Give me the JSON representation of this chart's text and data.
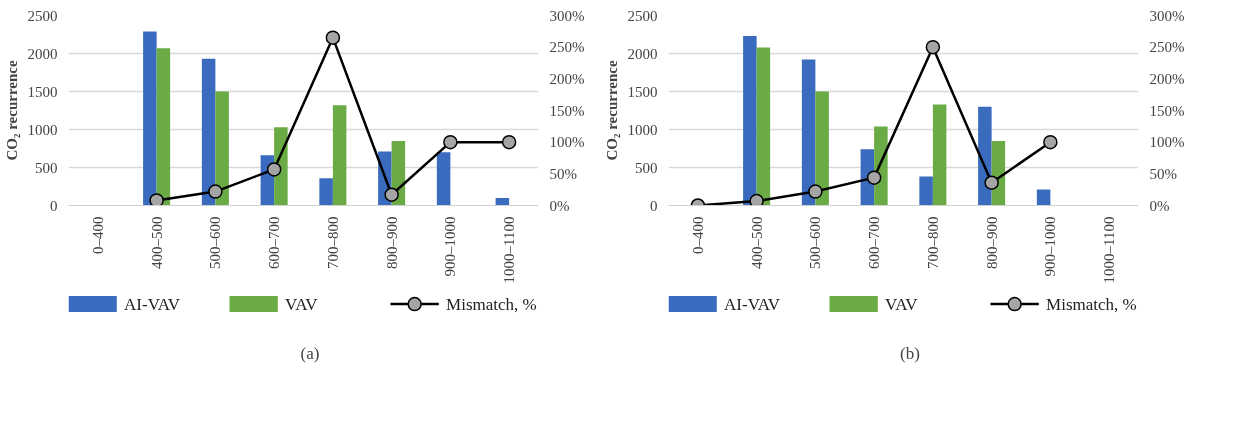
{
  "chart_data": [
    {
      "type": "bar",
      "ylabel": "CO₂ recurrence",
      "categories": [
        "0–400",
        "400–500",
        "500–600",
        "600–700",
        "700–800",
        "800–900",
        "900–1000",
        "1000–1100"
      ],
      "series": [
        {
          "name": "AI-VAV",
          "color": "#3a6bbf",
          "values": [
            0,
            2290,
            1930,
            660,
            360,
            710,
            700,
            100
          ]
        },
        {
          "name": "VAV",
          "color": "#6aab45",
          "values": [
            0,
            2070,
            1500,
            1030,
            1320,
            850,
            0,
            0
          ]
        },
        {
          "name": "Mismatch, %",
          "type": "line",
          "axis": "y2",
          "color": "#000000",
          "marker": "circle",
          "values": [
            null,
            8,
            22,
            57,
            265,
            17,
            100,
            100
          ]
        }
      ],
      "ylim": [
        0,
        2500
      ],
      "yticks": [
        0,
        500,
        1000,
        1500,
        2000,
        2500
      ],
      "y2lim": [
        0,
        300
      ],
      "y2ticks": [
        {
          "value": 0,
          "label": "0%"
        },
        {
          "value": 50,
          "label": "50%"
        },
        {
          "value": 100,
          "label": "100%"
        },
        {
          "value": 150,
          "label": "150%"
        },
        {
          "value": 200,
          "label": "200%"
        },
        {
          "value": 250,
          "label": "250%"
        },
        {
          "value": 300,
          "label": "300%"
        }
      ],
      "grid": "y",
      "legend": "bottom",
      "annotations": [
        "(a)"
      ]
    },
    {
      "type": "bar",
      "ylabel": "CO₂ recurrence",
      "categories": [
        "0–400",
        "400–500",
        "500–600",
        "600–700",
        "700–800",
        "800–900",
        "900–1000",
        "1000–1100"
      ],
      "series": [
        {
          "name": "AI-VAV",
          "color": "#3a6bbf",
          "values": [
            0,
            2230,
            1920,
            740,
            380,
            1300,
            210,
            0
          ]
        },
        {
          "name": "VAV",
          "color": "#6aab45",
          "values": [
            0,
            2080,
            1500,
            1040,
            1330,
            850,
            0,
            0
          ]
        },
        {
          "name": "Mismatch, %",
          "type": "line",
          "axis": "y2",
          "color": "#000000",
          "marker": "circle",
          "values": [
            0,
            7,
            22,
            44,
            250,
            36,
            100,
            null
          ]
        }
      ],
      "ylim": [
        0,
        2500
      ],
      "yticks": [
        0,
        500,
        1000,
        1500,
        2000,
        2500
      ],
      "y2lim": [
        0,
        300
      ],
      "y2ticks": [
        {
          "value": 0,
          "label": "0%"
        },
        {
          "value": 50,
          "label": "50%"
        },
        {
          "value": 100,
          "label": "100%"
        },
        {
          "value": 150,
          "label": "150%"
        },
        {
          "value": 200,
          "label": "200%"
        },
        {
          "value": 250,
          "label": "250%"
        },
        {
          "value": 300,
          "label": "300%"
        }
      ],
      "grid": "y",
      "legend": "bottom",
      "annotations": [
        "(b)"
      ]
    }
  ]
}
